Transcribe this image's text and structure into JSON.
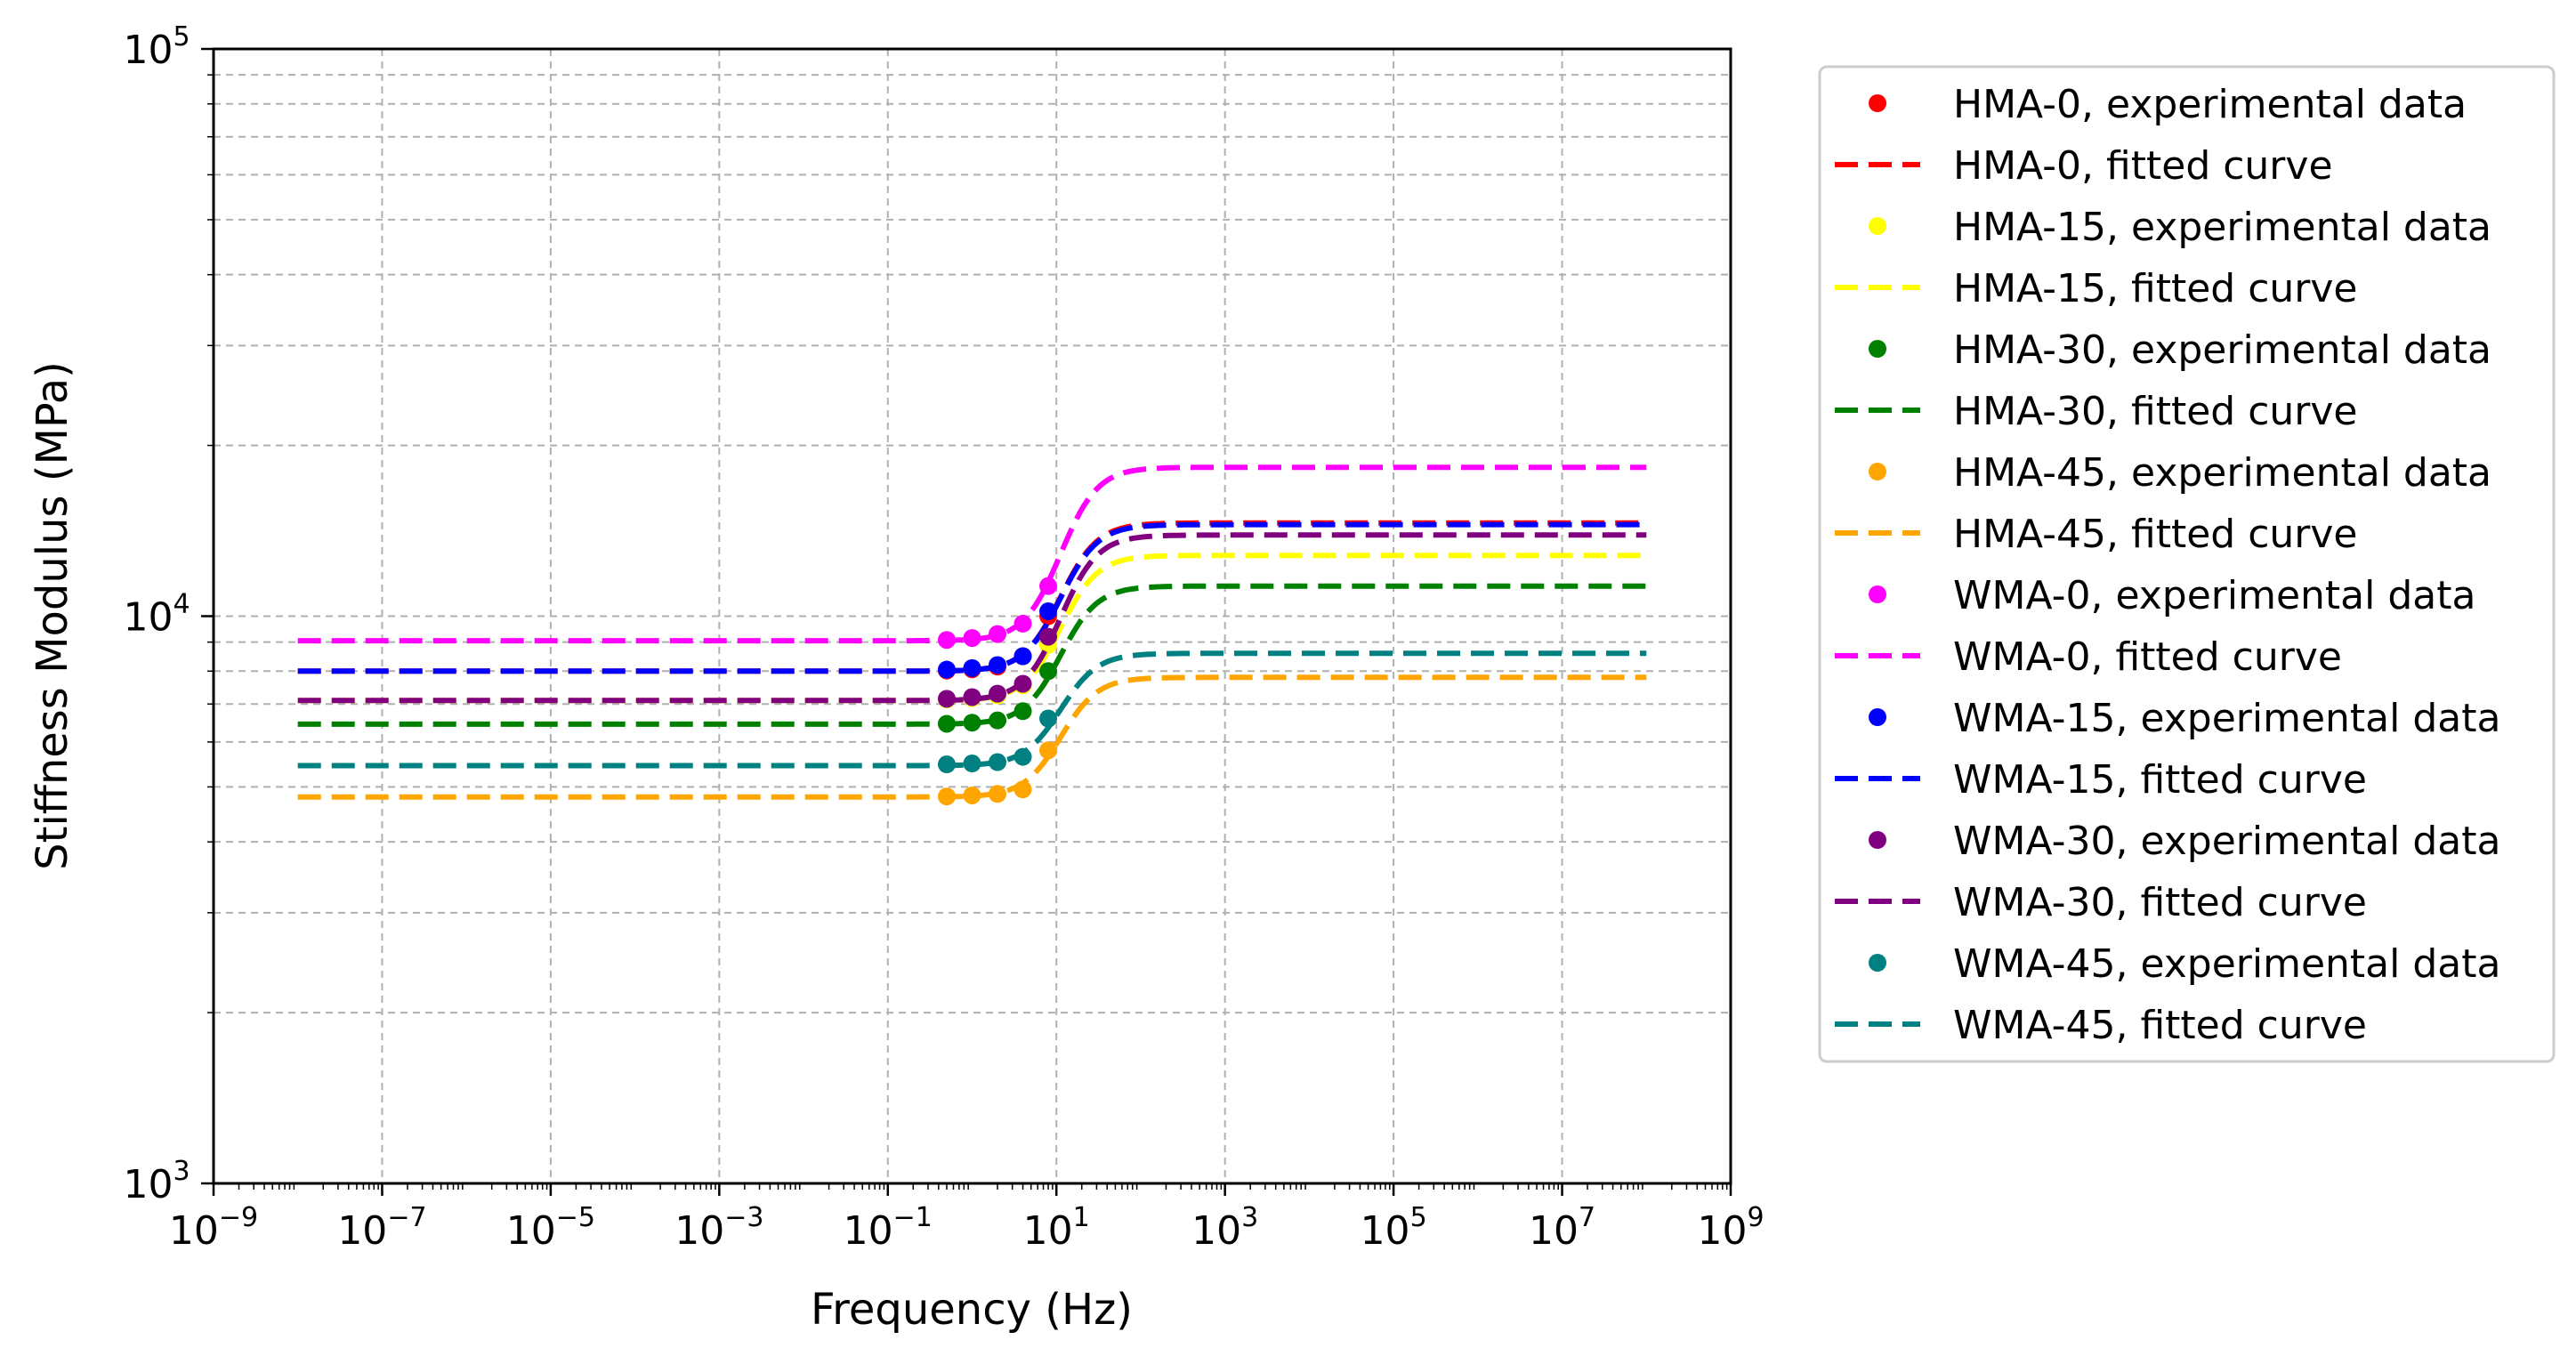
{
  "chart_data": {
    "type": "line",
    "title": "",
    "xlabel": "Frequency (Hz)",
    "ylabel": "Stiffness Modulus (MPa)",
    "x_scale": "log",
    "y_scale": "log",
    "xlim": [
      1e-09,
      1000000000.0
    ],
    "ylim": [
      1000,
      100000
    ],
    "grid": true,
    "legend_position": "outside-right",
    "x_ticks": [
      {
        "base": "10",
        "exp": "−9",
        "value": 1e-09
      },
      {
        "base": "10",
        "exp": "−7",
        "value": 1e-07
      },
      {
        "base": "10",
        "exp": "−5",
        "value": 1e-05
      },
      {
        "base": "10",
        "exp": "−3",
        "value": 0.001
      },
      {
        "base": "10",
        "exp": "−1",
        "value": 0.1
      },
      {
        "base": "10",
        "exp": "1",
        "value": 10
      },
      {
        "base": "10",
        "exp": "3",
        "value": 1000
      },
      {
        "base": "10",
        "exp": "5",
        "value": 100000
      },
      {
        "base": "10",
        "exp": "7",
        "value": 10000000
      },
      {
        "base": "10",
        "exp": "9",
        "value": 1000000000
      }
    ],
    "y_ticks": [
      {
        "base": "10",
        "exp": "3",
        "value": 1000
      },
      {
        "base": "10",
        "exp": "4",
        "value": 10000
      },
      {
        "base": "10",
        "exp": "5",
        "value": 100000
      }
    ],
    "experimental_frequencies": [
      0.5,
      1,
      2,
      4,
      8
    ],
    "fit": {
      "x_min": 1e-08,
      "x_max": 100000000.0,
      "transition_center_log10": 1.05,
      "transition_width": 0.22
    },
    "series": [
      {
        "experimental_label": "HMA-0, experimental data",
        "fitted_label": "HMA-0, fitted curve",
        "color": "#ff0000",
        "experimental_values": [
          8020,
          8060,
          8150,
          8500,
          10000
        ],
        "fitted_low": 8000,
        "fitted_high": 14600
      },
      {
        "experimental_label": "HMA-15, experimental data",
        "fitted_label": "HMA-15, fitted curve",
        "color": "#ffff00",
        "experimental_values": [
          7130,
          7170,
          7250,
          7550,
          8900
        ],
        "fitted_low": 7100,
        "fitted_high": 12800
      },
      {
        "experimental_label": "HMA-30, experimental data",
        "fitted_label": "HMA-30, fitted curve",
        "color": "#008000",
        "experimental_values": [
          6460,
          6490,
          6550,
          6800,
          8000
        ],
        "fitted_low": 6450,
        "fitted_high": 11300
      },
      {
        "experimental_label": "HMA-45, experimental data",
        "fitted_label": "HMA-45, fitted curve",
        "color": "#ffa500",
        "experimental_values": [
          4810,
          4830,
          4860,
          4950,
          5800
        ],
        "fitted_low": 4800,
        "fitted_high": 7800
      },
      {
        "experimental_label": "WMA-0, experimental data",
        "fitted_label": "WMA-0, fitted curve",
        "color": "#ff00ff",
        "experimental_values": [
          9080,
          9150,
          9300,
          9700,
          11300
        ],
        "fitted_low": 9050,
        "fitted_high": 18300
      },
      {
        "experimental_label": "WMA-15, experimental data",
        "fitted_label": "WMA-15, fitted curve",
        "color": "#0000ff",
        "experimental_values": [
          8050,
          8100,
          8200,
          8500,
          10200
        ],
        "fitted_low": 8000,
        "fitted_high": 14500
      },
      {
        "experimental_label": "WMA-30, experimental data",
        "fitted_label": "WMA-30, fitted curve",
        "color": "#800080",
        "experimental_values": [
          7150,
          7200,
          7300,
          7600,
          9200
        ],
        "fitted_low": 7100,
        "fitted_high": 13900
      },
      {
        "experimental_label": "WMA-45, experimental data",
        "fitted_label": "WMA-45, fitted curve",
        "color": "#008080",
        "experimental_values": [
          5480,
          5500,
          5530,
          5650,
          6600
        ],
        "fitted_low": 5450,
        "fitted_high": 8600
      }
    ]
  }
}
